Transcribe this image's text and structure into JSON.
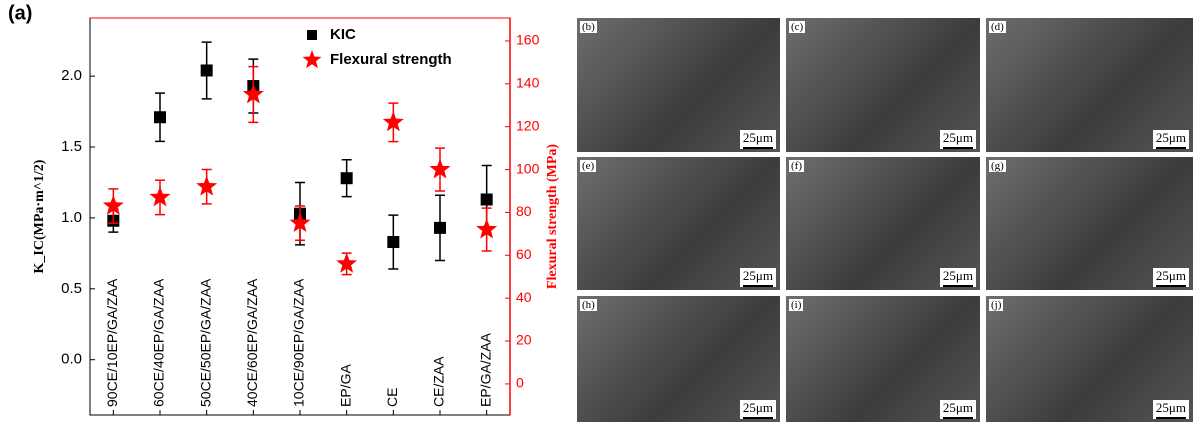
{
  "panel_label": "(a)",
  "chart_data": {
    "type": "errorbar",
    "categories": [
      "90CE/10EP/GA/ZAA",
      "60CE/40EP/GA/ZAA",
      "50CE/50EP/GA/ZAA",
      "40CE/60EP/GA/ZAA",
      "10CE/90EP/GA/ZAA",
      "EP/GA",
      "CE",
      "CE/ZAA",
      "EP/GA/ZAA"
    ],
    "ylabel": "K_IC(MPa·m^1/2)",
    "y2label": "Flexural strength (MPa)",
    "ylim": [
      -0.39,
      2.41
    ],
    "yticks": [
      {
        "value": 0,
        "label": "0.0"
      },
      {
        "value": 0.5,
        "label": "0.5"
      },
      {
        "value": 1,
        "label": "1.0"
      },
      {
        "value": 1.5,
        "label": "1.5"
      },
      {
        "value": 2,
        "label": "2.0"
      }
    ],
    "y2lim": [
      -14.5,
      170.7
    ],
    "y2ticks": [
      0,
      20,
      40,
      60,
      80,
      100,
      120,
      140,
      160
    ],
    "legend": "upper right",
    "series": [
      {
        "name": "KIC",
        "color": "#000000",
        "marker": "square",
        "values": [
          0.98,
          1.71,
          2.04,
          1.93,
          1.03,
          1.28,
          0.83,
          0.93,
          1.13
        ],
        "errors": [
          0.08,
          0.17,
          0.2,
          0.19,
          0.22,
          0.13,
          0.19,
          0.23,
          0.24
        ]
      },
      {
        "name": "Flexural strength",
        "color": "#ff0000",
        "marker": "star",
        "axis": "y2",
        "values": [
          83,
          87,
          92,
          135,
          75,
          56,
          122,
          100,
          72
        ],
        "errors": [
          8,
          8,
          8,
          13,
          8,
          5,
          9,
          10,
          10
        ]
      }
    ]
  },
  "images": [
    {
      "label": "(b)",
      "scale": "25μm"
    },
    {
      "label": "(c)",
      "scale": "25μm"
    },
    {
      "label": "(d)",
      "scale": "25μm"
    },
    {
      "label": "(e)",
      "scale": "25μm"
    },
    {
      "label": "(f)",
      "scale": "25μm"
    },
    {
      "label": "(g)",
      "scale": "25μm"
    },
    {
      "label": "(h)",
      "scale": "25μm"
    },
    {
      "label": "(i)",
      "scale": "25μm"
    },
    {
      "label": "(j)",
      "scale": "25μm"
    }
  ]
}
